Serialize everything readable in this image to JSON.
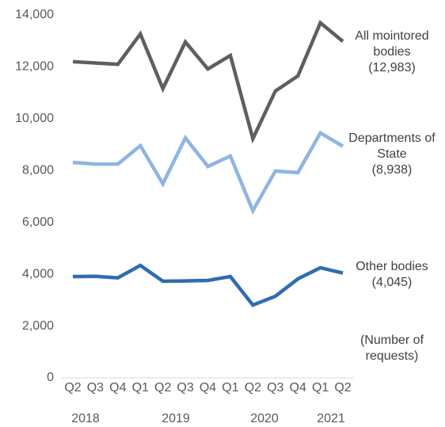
{
  "chart_data": {
    "type": "line",
    "y_label": "(Number of requests)",
    "categories": [
      "Q2",
      "Q3",
      "Q4",
      "Q1",
      "Q2",
      "Q3",
      "Q4",
      "Q1",
      "Q2",
      "Q3",
      "Q4",
      "Q1",
      "Q2"
    ],
    "years": [
      "2018",
      "2019",
      "2020",
      "2021"
    ],
    "series": [
      {
        "name": "All mointored bodies",
        "color": "#5f5f5f",
        "values": [
          12200,
          12150,
          12100,
          13270,
          11160,
          12960,
          11920,
          12440,
          9230,
          11070,
          11650,
          13700,
          12983
        ],
        "value_labels": [
          null,
          null,
          null,
          null,
          null,
          null,
          null,
          null,
          null,
          null,
          null,
          null,
          "(12,983)"
        ]
      },
      {
        "name": "Departments of State",
        "color": "#8fb5e2",
        "values": [
          8315,
          8250,
          8250,
          8960,
          7490,
          9260,
          8160,
          8560,
          6450,
          7980,
          7920,
          9450,
          8938
        ],
        "value_labels": [
          null,
          null,
          null,
          null,
          null,
          null,
          null,
          null,
          null,
          null,
          null,
          null,
          "(8,938)"
        ]
      },
      {
        "name": "Other bodies",
        "color": "#2f6cb3",
        "values": [
          3910,
          3920,
          3860,
          4340,
          3730,
          3740,
          3760,
          3910,
          2810,
          3150,
          3820,
          4250,
          4045
        ],
        "value_labels": [
          null,
          null,
          null,
          null,
          null,
          null,
          null,
          null,
          null,
          null,
          null,
          null,
          "(4,045)"
        ]
      }
    ],
    "ylim": [
      0,
      14000
    ],
    "yticks": [
      0,
      {
        "value": 2000,
        "label": "2,000"
      },
      {
        "value": 4000,
        "label": "4,000"
      },
      {
        "value": 6000,
        "label": "6,000"
      },
      {
        "value": 8000,
        "label": "8,000"
      },
      {
        "value": 10000,
        "label": "10,000"
      },
      {
        "value": 12000,
        "label": "12,000"
      },
      {
        "value": 14000,
        "label": "14,000"
      }
    ],
    "grid": false
  }
}
